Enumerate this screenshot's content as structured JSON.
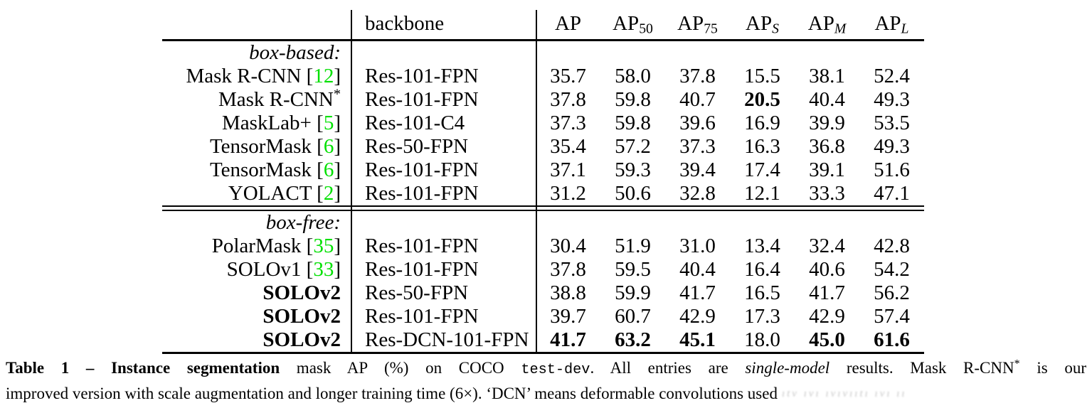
{
  "colors": {
    "citation_green": "#00e000",
    "text": "#000000"
  },
  "table": {
    "header": {
      "backbone": "backbone",
      "metrics": [
        {
          "base": "AP",
          "sub": ""
        },
        {
          "base": "AP",
          "sub": "50"
        },
        {
          "base": "AP",
          "sub": "75"
        },
        {
          "base": "AP",
          "sub": "S"
        },
        {
          "base": "AP",
          "sub": "M"
        },
        {
          "base": "AP",
          "sub": "L"
        }
      ]
    },
    "sections": [
      {
        "label": "box-based:",
        "rows": [
          {
            "method": "Mask R-CNN",
            "cite": "12",
            "sup": "",
            "bold_method": false,
            "backbone": "Res-101-FPN",
            "values": [
              "35.7",
              "58.0",
              "37.8",
              "15.5",
              "38.1",
              "52.4"
            ],
            "bold_values": []
          },
          {
            "method": "Mask R-CNN",
            "cite": "",
            "sup": "*",
            "bold_method": false,
            "backbone": "Res-101-FPN",
            "values": [
              "37.8",
              "59.8",
              "40.7",
              "20.5",
              "40.4",
              "49.3"
            ],
            "bold_values": [
              3
            ]
          },
          {
            "method": "MaskLab+",
            "cite": "5",
            "sup": "",
            "bold_method": false,
            "backbone": "Res-101-C4",
            "values": [
              "37.3",
              "59.8",
              "39.6",
              "16.9",
              "39.9",
              "53.5"
            ],
            "bold_values": []
          },
          {
            "method": "TensorMask",
            "cite": "6",
            "sup": "",
            "bold_method": false,
            "backbone": "Res-50-FPN",
            "values": [
              "35.4",
              "57.2",
              "37.3",
              "16.3",
              "36.8",
              "49.3"
            ],
            "bold_values": []
          },
          {
            "method": "TensorMask",
            "cite": "6",
            "sup": "",
            "bold_method": false,
            "backbone": "Res-101-FPN",
            "values": [
              "37.1",
              "59.3",
              "39.4",
              "17.4",
              "39.1",
              "51.6"
            ],
            "bold_values": []
          },
          {
            "method": "YOLACT",
            "cite": "2",
            "sup": "",
            "bold_method": false,
            "backbone": "Res-101-FPN",
            "values": [
              "31.2",
              "50.6",
              "32.8",
              "12.1",
              "33.3",
              "47.1"
            ],
            "bold_values": []
          }
        ]
      },
      {
        "label": "box-free:",
        "rows": [
          {
            "method": "PolarMask",
            "cite": "35",
            "sup": "",
            "bold_method": false,
            "backbone": "Res-101-FPN",
            "values": [
              "30.4",
              "51.9",
              "31.0",
              "13.4",
              "32.4",
              "42.8"
            ],
            "bold_values": []
          },
          {
            "method": "SOLOv1",
            "cite": "33",
            "sup": "",
            "bold_method": false,
            "backbone": "Res-101-FPN",
            "values": [
              "37.8",
              "59.5",
              "40.4",
              "16.4",
              "40.6",
              "54.2"
            ],
            "bold_values": []
          },
          {
            "method": "SOLOv2",
            "cite": "",
            "sup": "",
            "bold_method": true,
            "backbone": "Res-50-FPN",
            "values": [
              "38.8",
              "59.9",
              "41.7",
              "16.5",
              "41.7",
              "56.2"
            ],
            "bold_values": []
          },
          {
            "method": "SOLOv2",
            "cite": "",
            "sup": "",
            "bold_method": true,
            "backbone": "Res-101-FPN",
            "values": [
              "39.7",
              "60.7",
              "42.9",
              "17.3",
              "42.9",
              "57.4"
            ],
            "bold_values": []
          },
          {
            "method": "SOLOv2",
            "cite": "",
            "sup": "",
            "bold_method": true,
            "backbone": "Res-DCN-101-FPN",
            "values": [
              "41.7",
              "63.2",
              "45.1",
              "18.0",
              "45.0",
              "61.6"
            ],
            "bold_values": [
              0,
              1,
              2,
              4,
              5
            ]
          }
        ]
      }
    ]
  },
  "caption": {
    "line1": [
      {
        "t": "Table 1 – Instance segmentation",
        "style": "bold"
      },
      {
        "t": " mask AP (%) on COCO ",
        "style": ""
      },
      {
        "t": "test-dev",
        "style": "mono"
      },
      {
        "t": ". All entries are ",
        "style": ""
      },
      {
        "t": "single-model",
        "style": "italic"
      },
      {
        "t": " results.  Mask R-CNN",
        "style": ""
      },
      {
        "t": "*",
        "style": "sup"
      },
      {
        "t": " is our",
        "style": ""
      }
    ],
    "line2": [
      {
        "t": "improved version with scale augmentation and longer training time (6×). ‘DCN’ means deformable convolutions used",
        "style": ""
      }
    ]
  },
  "watermark": "ıtv ıvı ıvıvııtı ıvı ıı"
}
